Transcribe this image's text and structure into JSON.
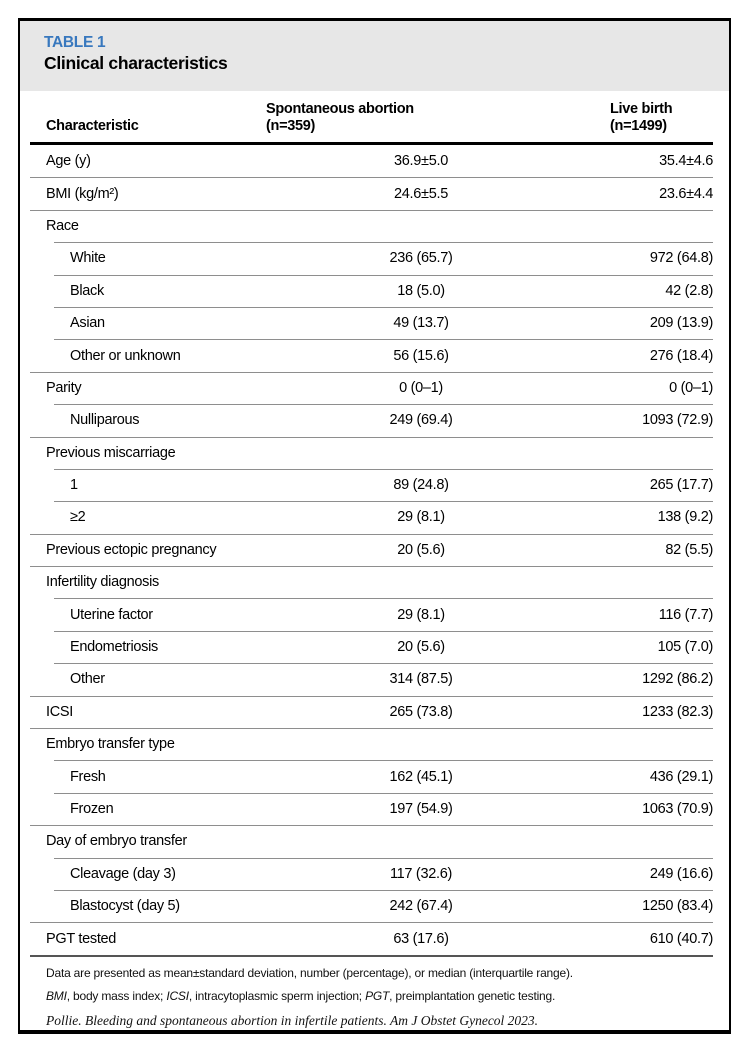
{
  "table": {
    "label": "TABLE 1",
    "title": "Clinical characteristics",
    "accent_color": "#3878be",
    "header_band_color": "#e7e7e7",
    "columns": {
      "characteristic": "Characteristic",
      "col2_line1": "Spontaneous abortion",
      "col2_line2": "(n=359)",
      "col3_line1": "Live birth",
      "col3_line2": "(n=1499)"
    },
    "rows": [
      {
        "label": "Age (y)",
        "indent": false,
        "col2": "36.9±5.0",
        "col3": "35.4±4.6"
      },
      {
        "label": "BMI (kg/m²)",
        "indent": false,
        "col2": "24.6±5.5",
        "col3": "23.6±4.4"
      },
      {
        "label": "Race",
        "indent": false,
        "col2": "",
        "col3": ""
      },
      {
        "label": "White",
        "indent": true,
        "col2": "236 (65.7)",
        "col3": "972 (64.8)"
      },
      {
        "label": "Black",
        "indent": true,
        "col2": "18 (5.0)",
        "col3": "42 (2.8)"
      },
      {
        "label": "Asian",
        "indent": true,
        "col2": "49 (13.7)",
        "col3": "209 (13.9)"
      },
      {
        "label": "Other or unknown",
        "indent": true,
        "col2": "56 (15.6)",
        "col3": "276 (18.4)"
      },
      {
        "label": "Parity",
        "indent": false,
        "col2": "0 (0–1)",
        "col3": "0 (0–1)"
      },
      {
        "label": "Nulliparous",
        "indent": true,
        "col2": "249 (69.4)",
        "col3": "1093 (72.9)"
      },
      {
        "label": "Previous miscarriage",
        "indent": false,
        "col2": "",
        "col3": ""
      },
      {
        "label": "1",
        "indent": true,
        "col2": "89 (24.8)",
        "col3": "265 (17.7)"
      },
      {
        "label": "≥2",
        "indent": true,
        "col2": "29 (8.1)",
        "col3": "138 (9.2)"
      },
      {
        "label": "Previous ectopic pregnancy",
        "indent": false,
        "col2": "20 (5.6)",
        "col3": "82 (5.5)"
      },
      {
        "label": "Infertility diagnosis",
        "indent": false,
        "col2": "",
        "col3": ""
      },
      {
        "label": "Uterine factor",
        "indent": true,
        "col2": "29 (8.1)",
        "col3": "116 (7.7)"
      },
      {
        "label": "Endometriosis",
        "indent": true,
        "col2": "20 (5.6)",
        "col3": "105 (7.0)"
      },
      {
        "label": "Other",
        "indent": true,
        "col2": "314 (87.5)",
        "col3": "1292 (86.2)"
      },
      {
        "label": "ICSI",
        "indent": false,
        "col2": "265 (73.8)",
        "col3": "1233 (82.3)"
      },
      {
        "label": "Embryo transfer type",
        "indent": false,
        "col2": "",
        "col3": ""
      },
      {
        "label": "Fresh",
        "indent": true,
        "col2": "162 (45.1)",
        "col3": "436 (29.1)"
      },
      {
        "label": "Frozen",
        "indent": true,
        "col2": "197 (54.9)",
        "col3": "1063 (70.9)"
      },
      {
        "label": "Day of embryo transfer",
        "indent": false,
        "col2": "",
        "col3": ""
      },
      {
        "label": "Cleavage (day 3)",
        "indent": true,
        "col2": "117 (32.6)",
        "col3": "249 (16.6)"
      },
      {
        "label": "Blastocyst (day 5)",
        "indent": true,
        "col2": "242 (67.4)",
        "col3": "1250 (83.4)"
      },
      {
        "label": "PGT tested",
        "indent": false,
        "col2": "63 (17.6)",
        "col3": "610 (40.7)"
      }
    ],
    "footnotes": {
      "note1": "Data are presented as mean±standard deviation, number (percentage), or median (interquartile range).",
      "note2_segments": [
        {
          "text": "BMI",
          "italic": true
        },
        {
          "text": ", body mass index; ",
          "italic": false
        },
        {
          "text": "ICSI",
          "italic": true
        },
        {
          "text": ", intracytoplasmic sperm injection; ",
          "italic": false
        },
        {
          "text": "PGT",
          "italic": true
        },
        {
          "text": ", preimplantation genetic testing.",
          "italic": false
        }
      ],
      "citation": "Pollie. Bleeding and spontaneous abortion in infertile patients. Am J Obstet Gynecol 2023."
    }
  }
}
